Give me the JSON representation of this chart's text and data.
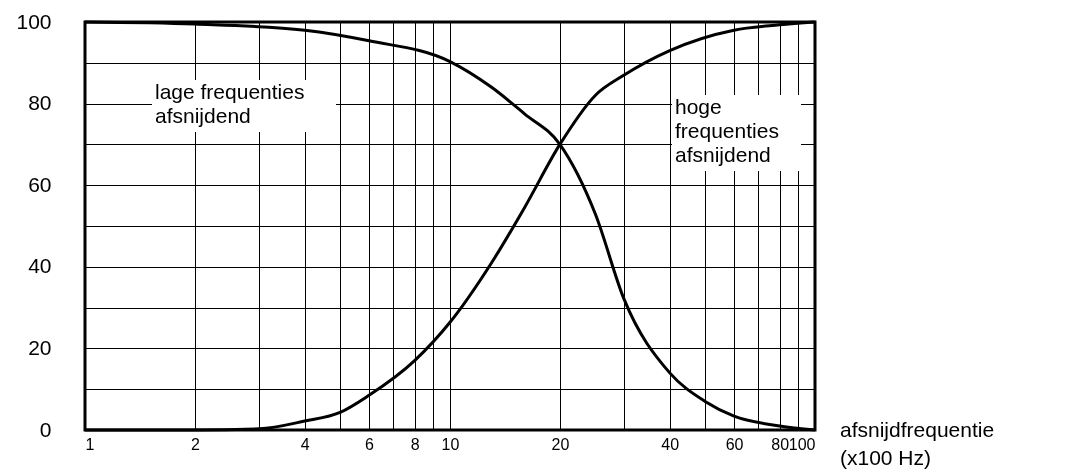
{
  "chart_data": {
    "type": "line",
    "xlabel": "afsnijdfrequentie (x100 Hz)",
    "annotations": [
      "lage frequenties\nafsnijdend",
      "hoge\nfrequenties\nafsnijdend"
    ],
    "log": "x",
    "xlim": [
      1,
      100
    ],
    "ylim": [
      0,
      100
    ],
    "xticks": [
      1,
      2,
      {
        "value": 3,
        "label": null
      },
      4,
      {
        "value": 5,
        "label": null
      },
      6,
      {
        "value": 7,
        "label": null
      },
      8,
      {
        "value": 9,
        "label": null
      },
      10,
      20,
      {
        "value": 30,
        "label": null
      },
      40,
      {
        "value": 50,
        "label": null
      },
      60,
      {
        "value": 70,
        "label": null
      },
      80,
      {
        "value": 90,
        "label": null
      },
      100
    ],
    "yticks": [
      0,
      {
        "value": 10,
        "label": null
      },
      20,
      {
        "value": 30,
        "label": null
      },
      40,
      {
        "value": 50,
        "label": null
      },
      60,
      {
        "value": 70,
        "label": null
      },
      80,
      {
        "value": 90,
        "label": null
      },
      100
    ],
    "grid": true,
    "series": [
      {
        "color": "#000000",
        "x": [
          1,
          2,
          4,
          6,
          10,
          13,
          16,
          20,
          25,
          30,
          40,
          50,
          60,
          80,
          100
        ],
        "values": [
          100,
          99.5,
          98,
          95.4,
          90.3,
          84,
          77.5,
          70,
          53,
          32,
          14,
          7,
          3.4,
          1,
          0
        ]
      },
      {
        "color": "#000000",
        "x": [
          1,
          2,
          3,
          4,
          5,
          6,
          8,
          10,
          13,
          16,
          20,
          25,
          30,
          40,
          60,
          80,
          100
        ],
        "values": [
          0,
          0,
          0.3,
          2.2,
          4.3,
          8.5,
          17,
          26.4,
          41,
          54.5,
          70,
          82,
          87,
          93,
          98,
          99.3,
          100
        ]
      }
    ]
  }
}
